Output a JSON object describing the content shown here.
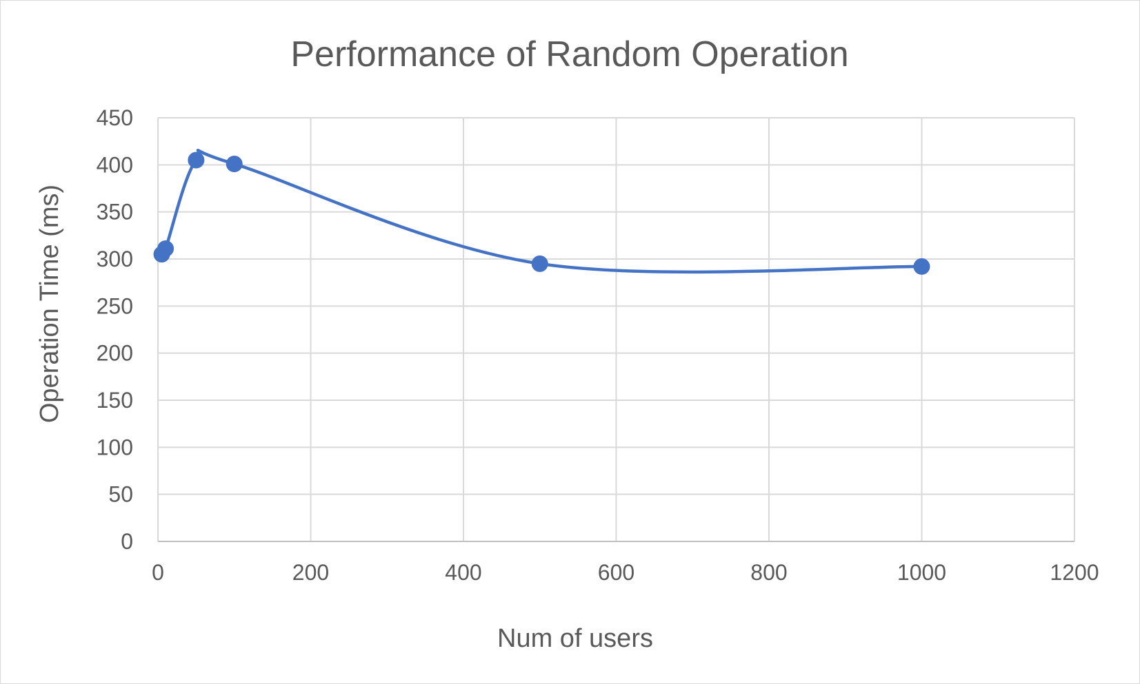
{
  "chart_data": {
    "type": "scatter",
    "title": "Performance of Random Operation",
    "xlabel": "Num of users",
    "ylabel": "Operation Time (ms)",
    "xlim": [
      0,
      1200
    ],
    "ylim": [
      0,
      450
    ],
    "xticks": [
      0,
      200,
      400,
      600,
      800,
      1000,
      1200
    ],
    "yticks": [
      0,
      50,
      100,
      150,
      200,
      250,
      300,
      350,
      400,
      450
    ],
    "grid": true,
    "line_style": "smooth",
    "series": [
      {
        "x": [
          5,
          10,
          50,
          100,
          500,
          1000
        ],
        "y": [
          305,
          311,
          405,
          401,
          295,
          292
        ],
        "color": "#4472c4"
      }
    ]
  }
}
